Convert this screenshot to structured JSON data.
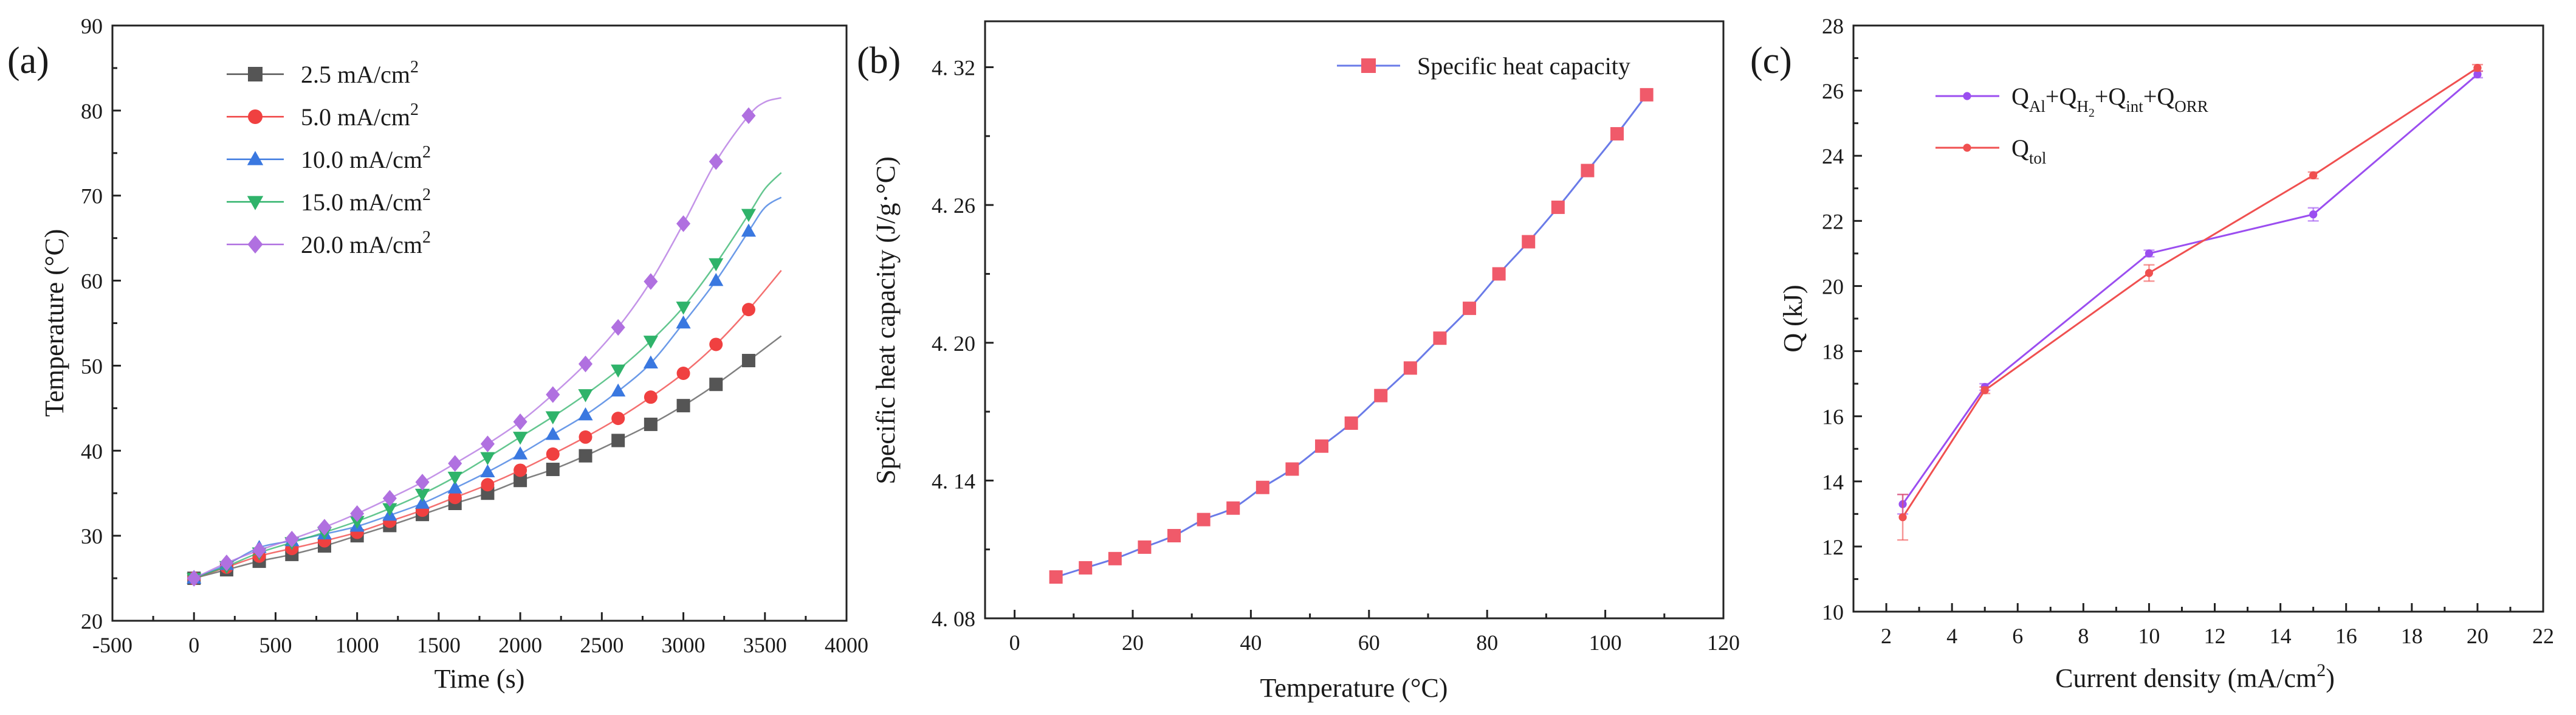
{
  "chart_data": [
    {
      "type": "line",
      "panel_label": "(a)",
      "title": "",
      "xlabel": "Time (s)",
      "ylabel": "Temperature (°C)",
      "xlim": [
        -500,
        4000
      ],
      "ylim": [
        20,
        90
      ],
      "x_ticks": [
        -500,
        0,
        500,
        1000,
        1500,
        2000,
        2500,
        3000,
        3500,
        4000
      ],
      "x_tick_labels": [
        "-500",
        "0",
        "500",
        "1000",
        "1500",
        "2000",
        "2500",
        "3000",
        "3500",
        "4000"
      ],
      "y_ticks": [
        20,
        30,
        40,
        50,
        60,
        70,
        80,
        90
      ],
      "y_tick_labels": [
        "20",
        "30",
        "40",
        "50",
        "60",
        "70",
        "80",
        "90"
      ],
      "legend_position": "top-left",
      "marker_x": [
        0,
        200,
        400,
        600,
        800,
        1000,
        1200,
        1400,
        1600,
        1800,
        2000,
        2200,
        2400,
        2600,
        2800,
        3000,
        3200,
        3400
      ],
      "series": [
        {
          "name": "2.5 mA/cm²",
          "label_main": "2.5 mA/cm",
          "label_sup": "2",
          "color": "#555555",
          "marker": "square",
          "values": [
            25.0,
            26.0,
            27.0,
            27.8,
            28.8,
            30.0,
            31.2,
            32.5,
            33.8,
            35.0,
            36.5,
            37.8,
            39.4,
            41.2,
            43.1,
            45.3,
            47.8,
            50.6
          ],
          "line_x": [
            0,
            200,
            400,
            600,
            800,
            1000,
            1200,
            1400,
            1600,
            1800,
            2000,
            2200,
            2400,
            2600,
            2800,
            3000,
            3200,
            3400,
            3600
          ],
          "line_y": [
            25.0,
            26.0,
            27.0,
            27.8,
            28.8,
            30.0,
            31.2,
            32.5,
            33.8,
            35.0,
            36.5,
            37.8,
            39.4,
            41.2,
            43.1,
            45.3,
            47.8,
            50.6,
            53.5
          ]
        },
        {
          "name": "5.0 mA/cm²",
          "label_main": "5.0 mA/cm",
          "label_sup": "2",
          "color": "#f04040",
          "marker": "circle",
          "values": [
            25.0,
            26.3,
            27.6,
            28.5,
            29.4,
            30.4,
            31.7,
            33.0,
            34.5,
            36.0,
            37.7,
            39.6,
            41.6,
            43.8,
            46.3,
            49.1,
            52.5,
            56.6
          ],
          "line_x": [
            0,
            200,
            400,
            600,
            800,
            1000,
            1200,
            1400,
            1600,
            1800,
            2000,
            2200,
            2400,
            2600,
            2800,
            3000,
            3200,
            3400,
            3600
          ],
          "line_y": [
            25.0,
            26.3,
            27.6,
            28.5,
            29.4,
            30.4,
            31.7,
            33.0,
            34.5,
            36.0,
            37.7,
            39.6,
            41.6,
            43.8,
            46.3,
            49.1,
            52.5,
            56.6,
            61.2
          ]
        },
        {
          "name": "10.0 mA/cm²",
          "label_main": "10.0 mA/cm",
          "label_sup": "2",
          "color": "#3a78e0",
          "marker": "triangle-up",
          "values": [
            25.0,
            26.6,
            28.6,
            29.4,
            30.2,
            31.1,
            32.4,
            33.8,
            35.6,
            37.5,
            39.6,
            41.9,
            44.2,
            47.0,
            50.3,
            55.0,
            60.0,
            65.8
          ],
          "line_x": [
            0,
            200,
            400,
            600,
            800,
            1000,
            1200,
            1400,
            1600,
            1800,
            2000,
            2200,
            2400,
            2600,
            2800,
            3000,
            3200,
            3400,
            3500,
            3600
          ],
          "line_y": [
            25.0,
            26.6,
            28.6,
            29.4,
            30.2,
            31.1,
            32.4,
            33.8,
            35.6,
            37.5,
            39.6,
            41.9,
            44.2,
            47.0,
            50.3,
            55.0,
            60.0,
            65.8,
            68.6,
            69.8
          ]
        },
        {
          "name": "15.0 mA/cm²",
          "label_main": "15.0 mA/cm",
          "label_sup": "2",
          "color": "#2fb36a",
          "marker": "triangle-down",
          "values": [
            25.0,
            26.4,
            28.0,
            29.2,
            30.4,
            31.7,
            33.2,
            34.9,
            36.9,
            39.2,
            41.6,
            44.0,
            46.6,
            49.5,
            52.9,
            56.9,
            62.0,
            67.8
          ],
          "line_x": [
            0,
            200,
            400,
            600,
            800,
            1000,
            1200,
            1400,
            1600,
            1800,
            2000,
            2200,
            2400,
            2600,
            2800,
            3000,
            3200,
            3400,
            3500,
            3600
          ],
          "line_y": [
            25.0,
            26.4,
            28.0,
            29.2,
            30.4,
            31.7,
            33.2,
            34.9,
            36.9,
            39.2,
            41.6,
            44.0,
            46.6,
            49.5,
            52.9,
            56.9,
            62.0,
            67.8,
            70.8,
            72.7
          ]
        },
        {
          "name": "20.0 mA/cm²",
          "label_main": "20.0 mA/cm",
          "label_sup": "2",
          "color": "#b070e0",
          "marker": "diamond",
          "values": [
            25.0,
            26.8,
            28.3,
            29.6,
            31.0,
            32.6,
            34.4,
            36.3,
            38.5,
            40.8,
            43.4,
            46.6,
            50.2,
            54.5,
            59.9,
            66.7,
            74.0,
            79.4
          ],
          "line_x": [
            0,
            200,
            400,
            600,
            800,
            1000,
            1200,
            1400,
            1600,
            1800,
            2000,
            2200,
            2400,
            2600,
            2800,
            3000,
            3200,
            3400,
            3500,
            3600
          ],
          "line_y": [
            25.0,
            26.8,
            28.3,
            29.6,
            31.0,
            32.6,
            34.4,
            36.3,
            38.5,
            40.8,
            43.4,
            46.6,
            50.2,
            54.5,
            59.9,
            66.7,
            74.0,
            79.4,
            81.0,
            81.5
          ]
        }
      ]
    },
    {
      "type": "line",
      "panel_label": "(b)",
      "title": "",
      "xlabel": "Temperature (°C)",
      "ylabel": "Specific heat capacity (J/g·°C)",
      "xlim": [
        -5,
        120
      ],
      "ylim": [
        4.08,
        4.34
      ],
      "x_ticks": [
        0,
        20,
        40,
        60,
        80,
        100,
        120
      ],
      "x_tick_labels": [
        "0",
        "20",
        "40",
        "60",
        "80",
        "100",
        "120"
      ],
      "y_ticks": [
        4.08,
        4.14,
        4.2,
        4.26,
        4.32
      ],
      "y_tick_labels": [
        "4. 08",
        "4. 14",
        "4. 20",
        "4. 26",
        "4. 32"
      ],
      "legend_position": "top-right",
      "series": [
        {
          "name": "Specific heat capacity",
          "color": "#6a7be8",
          "marker": "square",
          "marker_color": "#f05a6a",
          "x": [
            7,
            12,
            17,
            22,
            27,
            32,
            37,
            42,
            47,
            52,
            57,
            62,
            67,
            72,
            77,
            82,
            87,
            92,
            97,
            102,
            107
          ],
          "values": [
            4.098,
            4.102,
            4.106,
            4.111,
            4.116,
            4.123,
            4.128,
            4.137,
            4.145,
            4.155,
            4.165,
            4.177,
            4.189,
            4.202,
            4.215,
            4.23,
            4.244,
            4.259,
            4.275,
            4.291,
            4.308
          ]
        }
      ]
    },
    {
      "type": "line",
      "panel_label": "(c)",
      "title": "",
      "xlabel": "Current density (mA/cm²)",
      "xlabel_main": "Current density (mA/cm",
      "xlabel_sup": "2",
      "xlabel_end": ")",
      "ylabel": "Q (kJ)",
      "xlim": [
        1,
        22
      ],
      "ylim": [
        10,
        28
      ],
      "x_ticks": [
        2,
        4,
        6,
        8,
        10,
        12,
        14,
        16,
        18,
        20,
        22
      ],
      "x_tick_labels": [
        "2",
        "4",
        "6",
        "8",
        "10",
        "12",
        "14",
        "16",
        "18",
        "20",
        "22"
      ],
      "y_ticks": [
        10,
        12,
        14,
        16,
        18,
        20,
        22,
        24,
        26,
        28
      ],
      "y_tick_labels": [
        "10",
        "12",
        "14",
        "16",
        "18",
        "20",
        "22",
        "24",
        "26",
        "28"
      ],
      "legend_position": "top-left",
      "series": [
        {
          "name": "QAl+QH2+Qint+QORR",
          "label_parts": [
            {
              "text": "Q",
              "sub": "Al"
            },
            {
              "text": "+Q",
              "sub": "H",
              "subsub": "2"
            },
            {
              "text": "+Q",
              "sub": "int"
            },
            {
              "text": "+Q",
              "sub": "ORR"
            }
          ],
          "color": "#9b4ef0",
          "marker": "circle-small",
          "x": [
            2.5,
            5,
            10,
            15,
            20
          ],
          "values": [
            13.3,
            16.9,
            21.0,
            22.2,
            26.5
          ],
          "errors": [
            0.3,
            0.1,
            0.1,
            0.2,
            0.1
          ]
        },
        {
          "name": "Qtol",
          "label_parts": [
            {
              "text": "Q",
              "sub": "tol"
            }
          ],
          "color": "#f05050",
          "marker": "circle-small",
          "x": [
            2.5,
            5,
            10,
            15,
            20
          ],
          "values": [
            12.9,
            16.8,
            20.4,
            23.4,
            26.7
          ],
          "errors": [
            0.7,
            0.1,
            0.25,
            0.1,
            0.1
          ]
        }
      ]
    }
  ]
}
